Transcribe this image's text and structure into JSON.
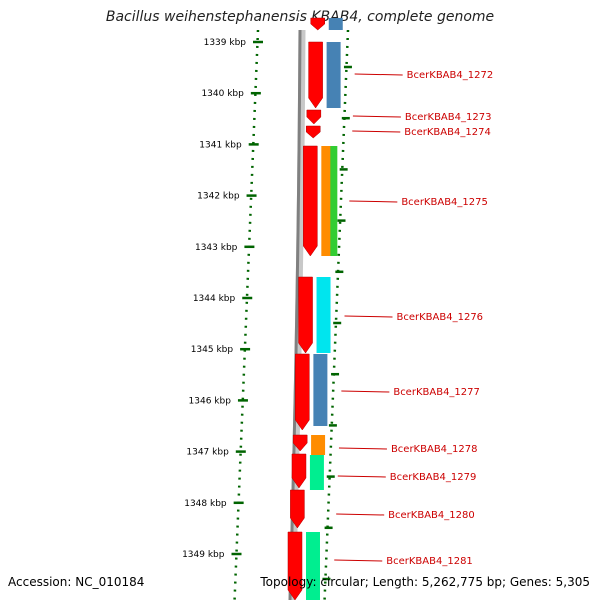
{
  "title": "Bacillus weihenstephanensis KBAB4, complete genome",
  "accession": "Accession: NC_010184",
  "summary": "Topology: circular; Length: 5,262,775 bp; Genes: 5,305",
  "scale_ticks": [
    "1339 kbp",
    "1340 kbp",
    "1341 kbp",
    "1342 kbp",
    "1343 kbp",
    "1344 kbp",
    "1345 kbp",
    "1346 kbp",
    "1347 kbp",
    "1348 kbp",
    "1349 kbp"
  ],
  "gene_labels": [
    "BcerKBAB4_1272",
    "BcerKBAB4_1273",
    "BcerKBAB4_1274",
    "BcerKBAB4_1275",
    "BcerKBAB4_1276",
    "BcerKBAB4_1277",
    "BcerKBAB4_1278",
    "BcerKBAB4_1279",
    "BcerKBAB4_1280",
    "BcerKBAB4_1281"
  ],
  "colors": {
    "cds": "#ff0000",
    "backbone": "#808080",
    "tick": "#006400",
    "label": "#cc0000",
    "cog_blue": "#4682b4",
    "cog_orange": "#ff8c00",
    "cog_green": "#32cd32",
    "cog_cyan": "#00e5ee",
    "cog_teal": "#00ee90"
  }
}
